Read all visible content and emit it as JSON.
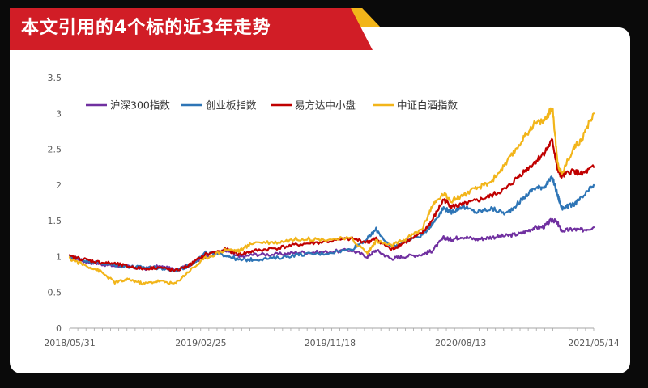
{
  "banner": {
    "title": "本文引用的4个标的近3年走势"
  },
  "colors": {
    "banner_red": "#d11d26",
    "banner_gold": "#f2b51a"
  },
  "chart_data": {
    "type": "line",
    "title": "本文引用的4个标的近3年走势",
    "xlabel": "",
    "ylabel": "",
    "ylim": [
      0,
      3.5
    ],
    "y_ticks": [
      "0",
      "0.5",
      "1",
      "1.5",
      "2",
      "2.5",
      "3",
      "3.5"
    ],
    "x_range": [
      "2018-05-31",
      "2021-05-14"
    ],
    "x_tick_labels": [
      "2018/05/31",
      "2019/02/25",
      "2019/11/18",
      "2020/08/13",
      "2021/05/14"
    ],
    "x_tick_dates": [
      "2018-05-31",
      "2019-02-25",
      "2019-11-18",
      "2020-08-13",
      "2021-05-14"
    ],
    "legend_position": "top-left",
    "grid": false,
    "series": [
      {
        "name": "沪深300指数",
        "color": "#7030a0",
        "x": [
          "2018-05-31",
          "2018-07-01",
          "2018-08-01",
          "2018-09-01",
          "2018-10-01",
          "2018-10-30",
          "2018-12-01",
          "2019-01-03",
          "2019-02-01",
          "2019-03-07",
          "2019-04-19",
          "2019-05-15",
          "2019-06-15",
          "2019-08-01",
          "2019-09-15",
          "2019-11-01",
          "2019-12-31",
          "2020-02-03",
          "2020-02-21",
          "2020-03-23",
          "2020-04-15",
          "2020-05-25",
          "2020-06-15",
          "2020-07-09",
          "2020-07-25",
          "2020-08-15",
          "2020-09-15",
          "2020-10-15",
          "2020-11-15",
          "2020-12-15",
          "2021-01-10",
          "2021-02-01",
          "2021-02-18",
          "2021-03-01",
          "2021-03-09",
          "2021-04-01",
          "2021-04-20",
          "2021-05-14"
        ],
        "values": [
          1.0,
          0.93,
          0.9,
          0.87,
          0.86,
          0.83,
          0.86,
          0.82,
          0.88,
          1.0,
          1.09,
          0.99,
          1.03,
          1.03,
          1.06,
          1.06,
          1.09,
          1.0,
          1.09,
          0.97,
          1.0,
          1.03,
          1.08,
          1.26,
          1.24,
          1.28,
          1.24,
          1.27,
          1.29,
          1.32,
          1.4,
          1.42,
          1.52,
          1.46,
          1.36,
          1.38,
          1.37,
          1.41
        ]
      },
      {
        "name": "创业板指数",
        "color": "#2e75b6",
        "x": [
          "2018-05-31",
          "2018-07-01",
          "2018-08-01",
          "2018-09-01",
          "2018-10-01",
          "2018-10-30",
          "2018-12-01",
          "2019-01-03",
          "2019-02-01",
          "2019-03-07",
          "2019-04-19",
          "2019-05-15",
          "2019-06-15",
          "2019-08-01",
          "2019-09-15",
          "2019-11-01",
          "2019-12-31",
          "2020-02-03",
          "2020-02-21",
          "2020-03-23",
          "2020-04-15",
          "2020-05-25",
          "2020-06-15",
          "2020-07-09",
          "2020-07-25",
          "2020-08-15",
          "2020-09-15",
          "2020-10-15",
          "2020-11-15",
          "2020-12-15",
          "2021-01-10",
          "2021-02-01",
          "2021-02-18",
          "2021-03-01",
          "2021-03-09",
          "2021-04-01",
          "2021-04-20",
          "2021-05-14"
        ],
        "values": [
          1.0,
          0.95,
          0.91,
          0.88,
          0.86,
          0.85,
          0.84,
          0.8,
          0.87,
          1.05,
          1.02,
          0.95,
          0.96,
          0.98,
          1.03,
          1.04,
          1.1,
          1.25,
          1.38,
          1.12,
          1.2,
          1.3,
          1.45,
          1.68,
          1.62,
          1.7,
          1.62,
          1.67,
          1.6,
          1.78,
          1.95,
          1.98,
          2.1,
          1.85,
          1.68,
          1.72,
          1.82,
          2.0
        ]
      },
      {
        "name": "易方达中小盘",
        "color": "#c00000",
        "x": [
          "2018-05-31",
          "2018-07-01",
          "2018-08-01",
          "2018-09-01",
          "2018-10-01",
          "2018-10-30",
          "2018-12-01",
          "2019-01-03",
          "2019-02-01",
          "2019-03-07",
          "2019-04-19",
          "2019-05-15",
          "2019-06-15",
          "2019-08-01",
          "2019-09-15",
          "2019-11-01",
          "2019-12-31",
          "2020-02-03",
          "2020-02-21",
          "2020-03-23",
          "2020-04-15",
          "2020-05-25",
          "2020-06-15",
          "2020-07-09",
          "2020-07-25",
          "2020-08-15",
          "2020-09-15",
          "2020-10-15",
          "2020-11-15",
          "2020-12-15",
          "2021-01-10",
          "2021-02-01",
          "2021-02-18",
          "2021-03-01",
          "2021-03-09",
          "2021-04-01",
          "2021-04-20",
          "2021-05-14"
        ],
        "values": [
          1.0,
          0.96,
          0.92,
          0.9,
          0.86,
          0.83,
          0.85,
          0.8,
          0.88,
          1.03,
          1.1,
          1.03,
          1.08,
          1.12,
          1.17,
          1.2,
          1.25,
          1.2,
          1.25,
          1.1,
          1.18,
          1.32,
          1.5,
          1.8,
          1.7,
          1.72,
          1.78,
          1.85,
          1.95,
          2.15,
          2.3,
          2.45,
          2.62,
          2.2,
          2.12,
          2.2,
          2.15,
          2.25
        ]
      },
      {
        "name": "中证白酒指数",
        "color": "#f2b51a",
        "x": [
          "2018-05-31",
          "2018-07-01",
          "2018-08-01",
          "2018-09-01",
          "2018-10-01",
          "2018-10-30",
          "2018-12-01",
          "2019-01-03",
          "2019-02-01",
          "2019-03-07",
          "2019-04-19",
          "2019-05-15",
          "2019-06-15",
          "2019-08-01",
          "2019-09-15",
          "2019-11-01",
          "2019-12-31",
          "2020-02-03",
          "2020-02-21",
          "2020-03-23",
          "2020-04-15",
          "2020-05-25",
          "2020-06-15",
          "2020-07-09",
          "2020-07-25",
          "2020-08-15",
          "2020-09-15",
          "2020-10-15",
          "2020-11-15",
          "2020-12-15",
          "2021-01-10",
          "2021-02-01",
          "2021-02-18",
          "2021-03-01",
          "2021-03-09",
          "2021-04-01",
          "2021-04-20",
          "2021-05-14"
        ],
        "values": [
          0.97,
          0.88,
          0.8,
          0.64,
          0.68,
          0.62,
          0.66,
          0.62,
          0.8,
          0.98,
          1.1,
          1.08,
          1.2,
          1.2,
          1.25,
          1.24,
          1.25,
          1.05,
          1.22,
          1.15,
          1.22,
          1.38,
          1.7,
          1.88,
          1.78,
          1.85,
          1.95,
          2.05,
          2.3,
          2.6,
          2.85,
          2.9,
          3.08,
          2.3,
          2.15,
          2.5,
          2.65,
          3.0
        ]
      }
    ]
  }
}
